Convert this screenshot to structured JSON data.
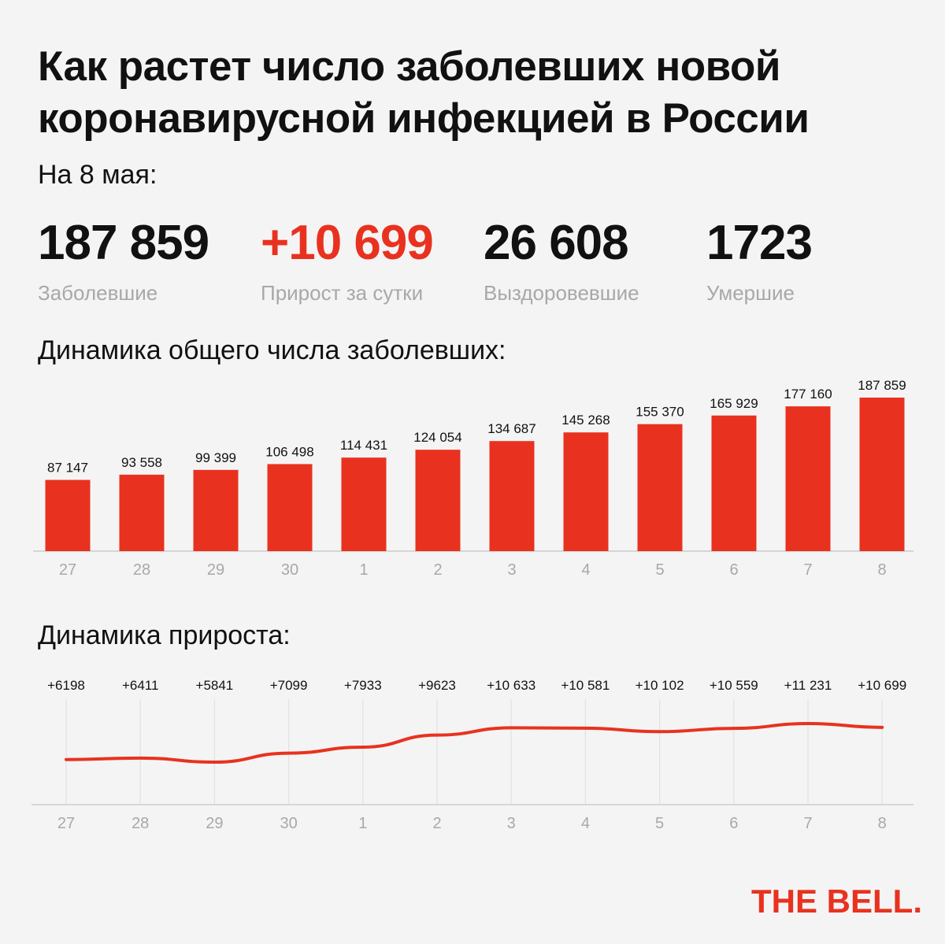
{
  "title": "Как растет число заболевших новой коронавирусной инфекцией в России",
  "date_label": "На 8 мая:",
  "stats": [
    {
      "value": "187 859",
      "label": "Заболевшие"
    },
    {
      "value": "+10 699",
      "label": "Прирост за сутки"
    },
    {
      "value": "26 608",
      "label": "Выздоровевшие"
    },
    {
      "value": "1723",
      "label": "Умершие"
    }
  ],
  "colors": {
    "accent": "#e8321f",
    "text": "#111111",
    "muted": "#a8a8a8",
    "axis": "#cccccc",
    "background": "#f4f4f4"
  },
  "chart_data": [
    {
      "type": "bar",
      "title": "Динамика общего числа заболевших:",
      "categories": [
        "27",
        "28",
        "29",
        "30",
        "1",
        "2",
        "3",
        "4",
        "5",
        "6",
        "7",
        "8"
      ],
      "values": [
        87147,
        93558,
        99399,
        106498,
        114431,
        124054,
        134687,
        145268,
        155370,
        165929,
        177160,
        187859
      ],
      "value_labels": [
        "87 147",
        "93 558",
        "99 399",
        "106 498",
        "114 431",
        "124 054",
        "134 687",
        "145 268",
        "155 370",
        "165 929",
        "177 160",
        "187 859"
      ],
      "grid": false,
      "color": "#e8321f"
    },
    {
      "type": "line",
      "title": "Динамика прироста:",
      "categories": [
        "27",
        "28",
        "29",
        "30",
        "1",
        "2",
        "3",
        "4",
        "5",
        "6",
        "7",
        "8"
      ],
      "values": [
        6198,
        6411,
        5841,
        7099,
        7933,
        9623,
        10633,
        10581,
        10102,
        10559,
        11231,
        10699
      ],
      "value_labels": [
        "+6198",
        "+6411",
        "+5841",
        "+7099",
        "+7933",
        "+9623",
        "+10 633",
        "+10 581",
        "+10 102",
        "+10 559",
        "+11 231",
        "+10 699"
      ],
      "grid": true,
      "color": "#e8321f"
    }
  ],
  "logo": "THE BELL."
}
